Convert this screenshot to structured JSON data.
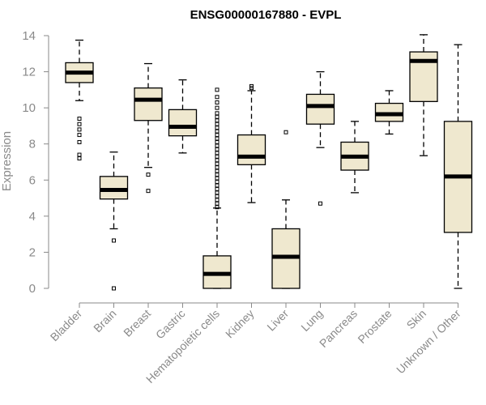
{
  "chart_data": {
    "type": "boxplot",
    "title": "ENSG00000167880 - EVPL",
    "xlabel": "",
    "ylabel": "Expression",
    "ylim": [
      0,
      14
    ],
    "yticks": [
      0,
      2,
      4,
      6,
      8,
      10,
      12,
      14
    ],
    "box_color": "#efe8cf",
    "categories": [
      "Bladder",
      "Brain",
      "Breast",
      "Gastric",
      "Hematopoietic cells",
      "Kidney",
      "Liver",
      "Lung",
      "Pancreas",
      "Prostate",
      "Skin",
      "Unknown / Other"
    ],
    "boxes": [
      {
        "name": "Bladder",
        "whisker_low": 10.4,
        "q1": 11.4,
        "median": 11.95,
        "q3": 12.5,
        "whisker_high": 13.75,
        "outliers": [
          9.4,
          9.1,
          8.8,
          8.5,
          8.1,
          7.4,
          7.2
        ]
      },
      {
        "name": "Brain",
        "whisker_low": 3.3,
        "q1": 4.95,
        "median": 5.45,
        "q3": 6.2,
        "whisker_high": 7.55,
        "outliers": [
          2.65,
          0.0
        ]
      },
      {
        "name": "Breast",
        "whisker_low": 6.7,
        "q1": 9.3,
        "median": 10.45,
        "q3": 11.1,
        "whisker_high": 12.45,
        "outliers": [
          6.3,
          5.4
        ]
      },
      {
        "name": "Gastric",
        "whisker_low": 7.5,
        "q1": 8.45,
        "median": 8.95,
        "q3": 9.9,
        "whisker_high": 11.55,
        "outliers": []
      },
      {
        "name": "Hematopoietic cells",
        "whisker_low": 0.0,
        "q1": 0.0,
        "median": 0.8,
        "q3": 1.8,
        "whisker_high": 4.45,
        "outliers": [
          4.5,
          4.7,
          4.9,
          5.1,
          5.3,
          5.5,
          5.7,
          5.9,
          6.1,
          6.3,
          6.5,
          6.7,
          6.9,
          7.1,
          7.3,
          7.5,
          7.7,
          7.9,
          8.1,
          8.3,
          8.5,
          8.7,
          8.9,
          9.1,
          9.3,
          9.5,
          9.7,
          10.0,
          10.3,
          10.6,
          11.0
        ]
      },
      {
        "name": "Kidney",
        "whisker_low": 4.75,
        "q1": 6.85,
        "median": 7.3,
        "q3": 8.5,
        "whisker_high": 10.95,
        "outliers": [
          11.1,
          11.2
        ]
      },
      {
        "name": "Liver",
        "whisker_low": 0.0,
        "q1": 0.0,
        "median": 1.75,
        "q3": 3.3,
        "whisker_high": 4.9,
        "outliers": [
          8.65
        ]
      },
      {
        "name": "Lung",
        "whisker_low": 7.8,
        "q1": 9.1,
        "median": 10.1,
        "q3": 10.75,
        "whisker_high": 12.0,
        "outliers": [
          4.7
        ]
      },
      {
        "name": "Pancreas",
        "whisker_low": 5.3,
        "q1": 6.55,
        "median": 7.3,
        "q3": 8.1,
        "whisker_high": 9.25,
        "outliers": []
      },
      {
        "name": "Prostate",
        "whisker_low": 8.55,
        "q1": 9.25,
        "median": 9.65,
        "q3": 10.25,
        "whisker_high": 10.95,
        "outliers": []
      },
      {
        "name": "Skin",
        "whisker_low": 7.35,
        "q1": 10.35,
        "median": 12.6,
        "q3": 13.1,
        "whisker_high": 14.05,
        "outliers": []
      },
      {
        "name": "Unknown / Other",
        "whisker_low": 0.0,
        "q1": 3.1,
        "median": 6.2,
        "q3": 9.25,
        "whisker_high": 13.5,
        "outliers": []
      }
    ]
  }
}
